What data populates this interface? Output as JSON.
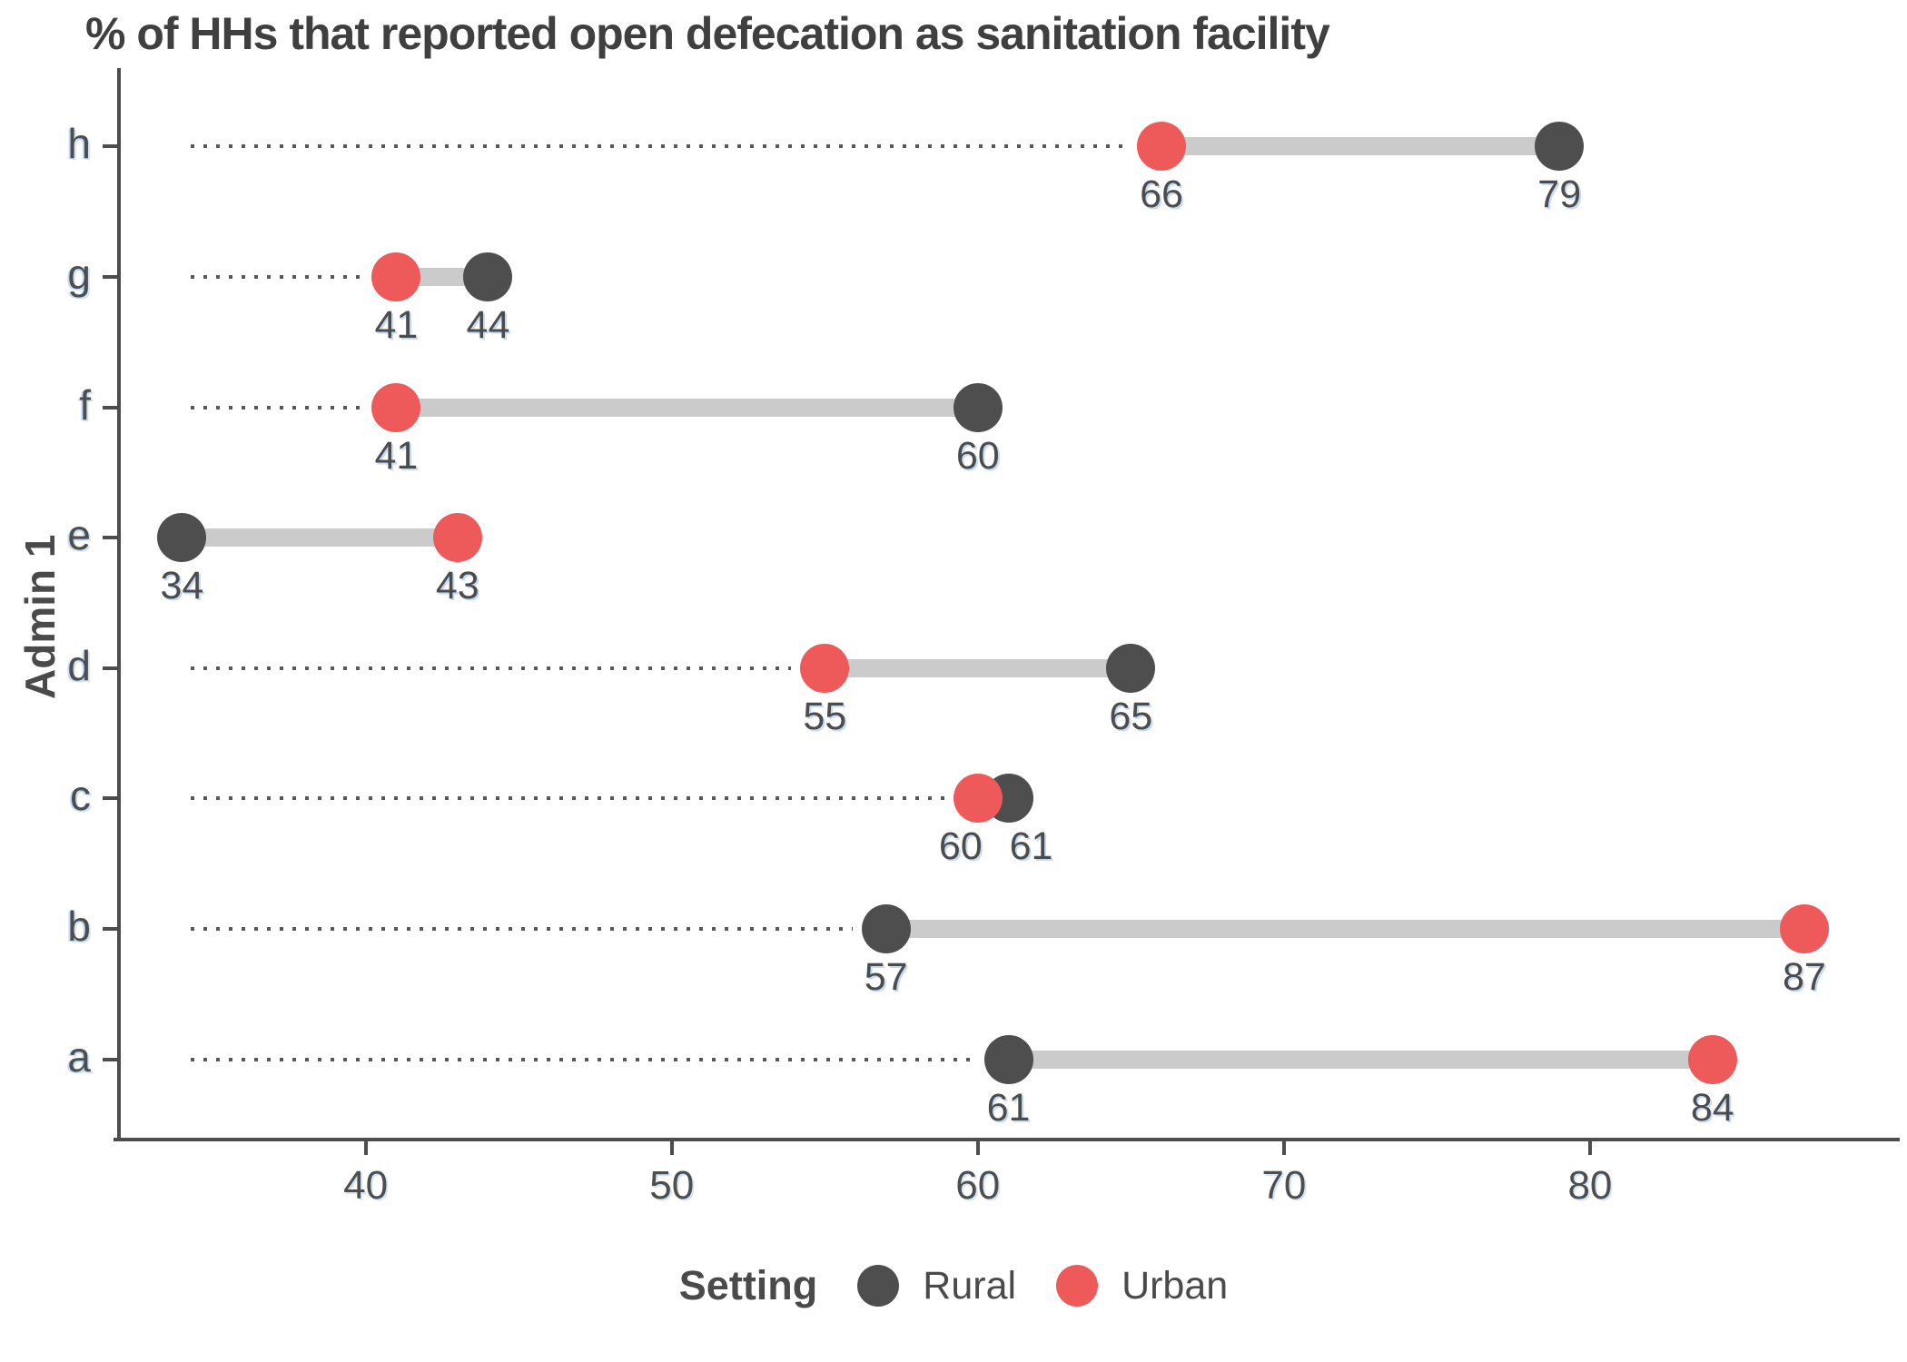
{
  "chart_data": {
    "type": "scatter",
    "variant": "dumbbell",
    "title": "% of HHs that reported open defecation as sanitation facility",
    "xlabel": "",
    "ylabel": "Admin 1",
    "categories": [
      "h",
      "g",
      "f",
      "e",
      "d",
      "c",
      "b",
      "a"
    ],
    "series": [
      {
        "name": "Rural",
        "color": "#4F4E4E",
        "values": [
          79,
          44,
          60,
          34,
          65,
          61,
          57,
          61
        ]
      },
      {
        "name": "Urban",
        "color": "#EE5A59",
        "values": [
          66,
          41,
          41,
          43,
          55,
          60,
          87,
          84
        ]
      }
    ],
    "xlim": [
      32,
      90
    ],
    "x_ticks": [
      40,
      50,
      60,
      70,
      80
    ],
    "grid": false,
    "legend_position": "bottom",
    "connector_color": "#CBCBCB",
    "leader_line_style": "dotted"
  },
  "legend": {
    "title": "Setting",
    "items": [
      {
        "label": "Rural",
        "color": "#4F4E4E"
      },
      {
        "label": "Urban",
        "color": "#EE5A59"
      }
    ]
  }
}
